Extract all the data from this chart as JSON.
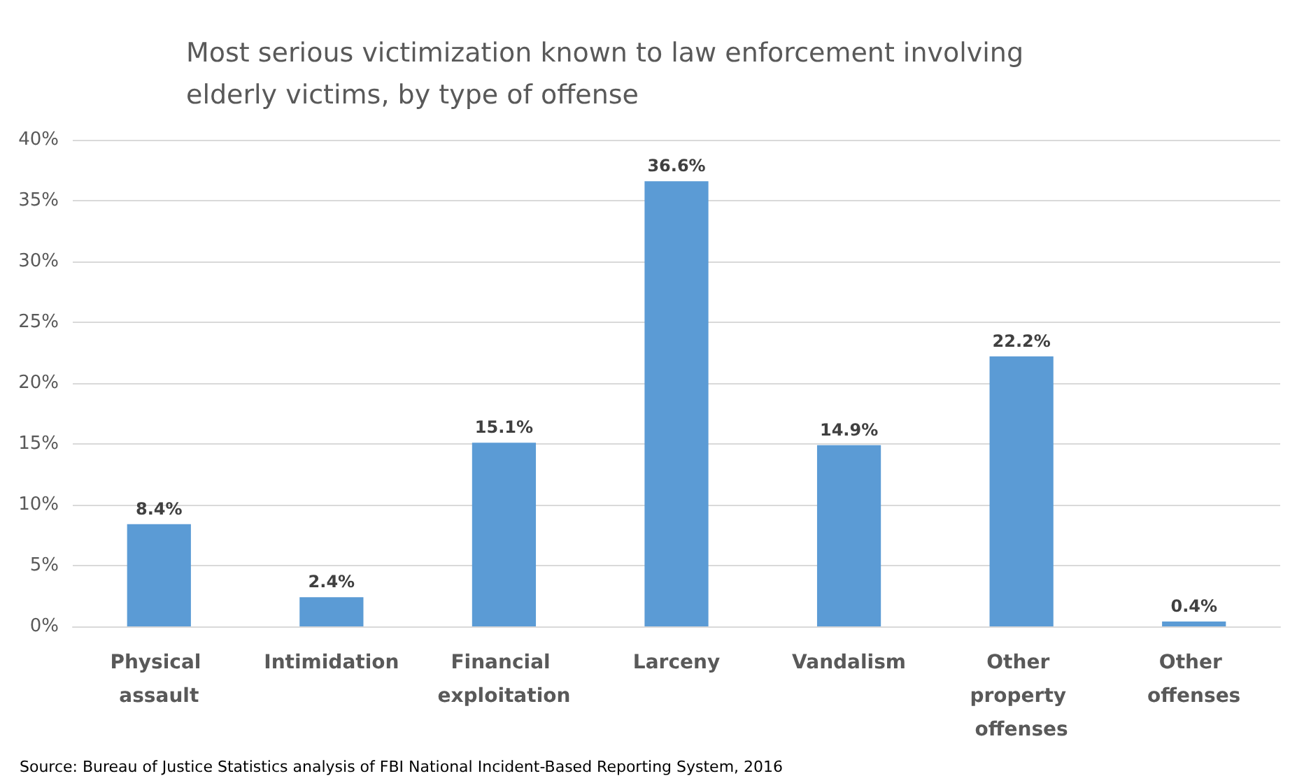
{
  "chart_data": {
    "type": "bar",
    "title": "Most serious victimization known to law enforcement involving elderly victims, by type of offense",
    "categories": [
      "Physical assault",
      "Intimidation",
      "Financial exploitation",
      "Larceny",
      "Vandalism",
      "Other property offenses",
      "Other offenses"
    ],
    "values": [
      8.4,
      2.4,
      15.1,
      36.6,
      14.9,
      22.2,
      0.4
    ],
    "value_labels": [
      "8.4%",
      "2.4%",
      "15.1%",
      "36.6%",
      "14.9%",
      "22.2%",
      "0.4%"
    ],
    "color": "#5b9bd5",
    "ylim": [
      0,
      40
    ],
    "yticks": [
      {
        "value": 0,
        "label": "0%"
      },
      {
        "value": 5,
        "label": "5%"
      },
      {
        "value": 10,
        "label": "10%"
      },
      {
        "value": 15,
        "label": "15%"
      },
      {
        "value": 20,
        "label": "20%"
      },
      {
        "value": 25,
        "label": "25%"
      },
      {
        "value": 30,
        "label": "30%"
      },
      {
        "value": 35,
        "label": "35%"
      },
      {
        "value": 40,
        "label": "40%"
      }
    ],
    "grid": "y",
    "annotations": [
      "Source: Bureau of Justice Statistics analysis of FBI National Incident-Based Reporting System, 2016"
    ]
  }
}
